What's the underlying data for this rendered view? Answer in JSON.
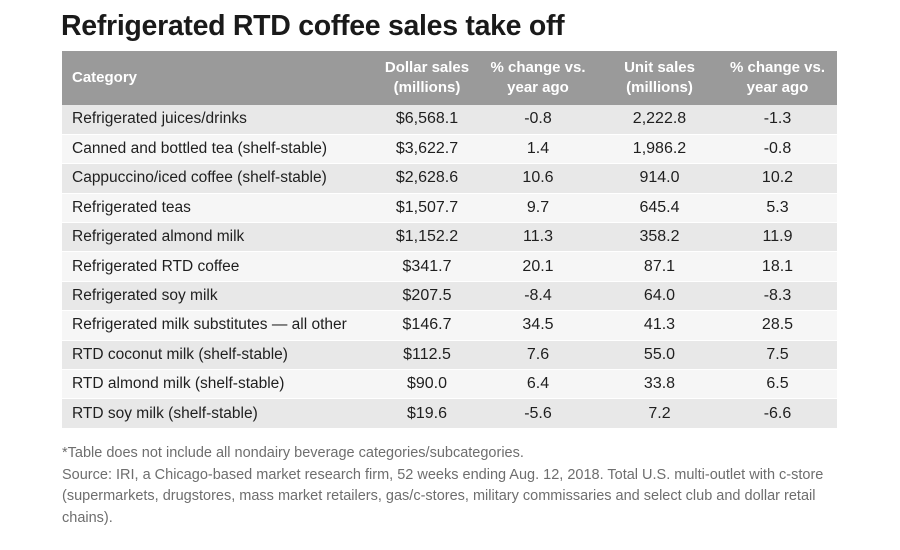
{
  "title": "Refrigerated RTD coffee sales take off",
  "table": {
    "headers": {
      "category": "Category",
      "dollar_sales": "Dollar sales\n(millions)",
      "dollar_change": "% change vs.\nyear ago",
      "unit_sales": "Unit sales\n(millions)",
      "unit_change": "% change vs.\nyear ago"
    },
    "rows": [
      {
        "category": "Refrigerated juices/drinks",
        "dollar_sales": "$6,568.1",
        "dollar_change": "-0.8",
        "unit_sales": "2,222.8",
        "unit_change": "-1.3"
      },
      {
        "category": "Canned and bottled tea (shelf-stable)",
        "dollar_sales": "$3,622.7",
        "dollar_change": "1.4",
        "unit_sales": "1,986.2",
        "unit_change": "-0.8"
      },
      {
        "category": "Cappuccino/iced coffee (shelf-stable)",
        "dollar_sales": "$2,628.6",
        "dollar_change": "10.6",
        "unit_sales": "914.0",
        "unit_change": "10.2"
      },
      {
        "category": "Refrigerated teas",
        "dollar_sales": "$1,507.7",
        "dollar_change": "9.7",
        "unit_sales": "645.4",
        "unit_change": "5.3"
      },
      {
        "category": "Refrigerated almond milk",
        "dollar_sales": "$1,152.2",
        "dollar_change": "11.3",
        "unit_sales": "358.2",
        "unit_change": "11.9"
      },
      {
        "category": "Refrigerated RTD coffee",
        "dollar_sales": "$341.7",
        "dollar_change": "20.1",
        "unit_sales": "87.1",
        "unit_change": "18.1"
      },
      {
        "category": "Refrigerated soy milk",
        "dollar_sales": "$207.5",
        "dollar_change": "-8.4",
        "unit_sales": "64.0",
        "unit_change": "-8.3"
      },
      {
        "category": "Refrigerated milk substitutes — all other",
        "dollar_sales": "$146.7",
        "dollar_change": "34.5",
        "unit_sales": "41.3",
        "unit_change": "28.5"
      },
      {
        "category": "RTD coconut milk (shelf-stable)",
        "dollar_sales": "$112.5",
        "dollar_change": "7.6",
        "unit_sales": "55.0",
        "unit_change": "7.5"
      },
      {
        "category": "RTD almond milk (shelf-stable)",
        "dollar_sales": "$90.0",
        "dollar_change": "6.4",
        "unit_sales": "33.8",
        "unit_change": "6.5"
      },
      {
        "category": "RTD soy milk (shelf-stable)",
        "dollar_sales": "$19.6",
        "dollar_change": "-5.6",
        "unit_sales": "7.2",
        "unit_change": "-6.6"
      }
    ]
  },
  "notes": {
    "footnote": "*Table does not include all nondairy beverage categories/subcategories.",
    "source": "Source: IRI, a Chicago-based market research firm, 52 weeks ending Aug. 12, 2018. Total U.S. multi-outlet with c-store (supermarkets, drugstores, mass market retailers, gas/c-stores, military commissaries and select club and dollar retail chains)."
  },
  "colors": {
    "header_bg": "#9a9a9a",
    "row_odd": "#e8e8e8",
    "row_even": "#f6f6f6",
    "note_text": "#6e6e6e"
  }
}
